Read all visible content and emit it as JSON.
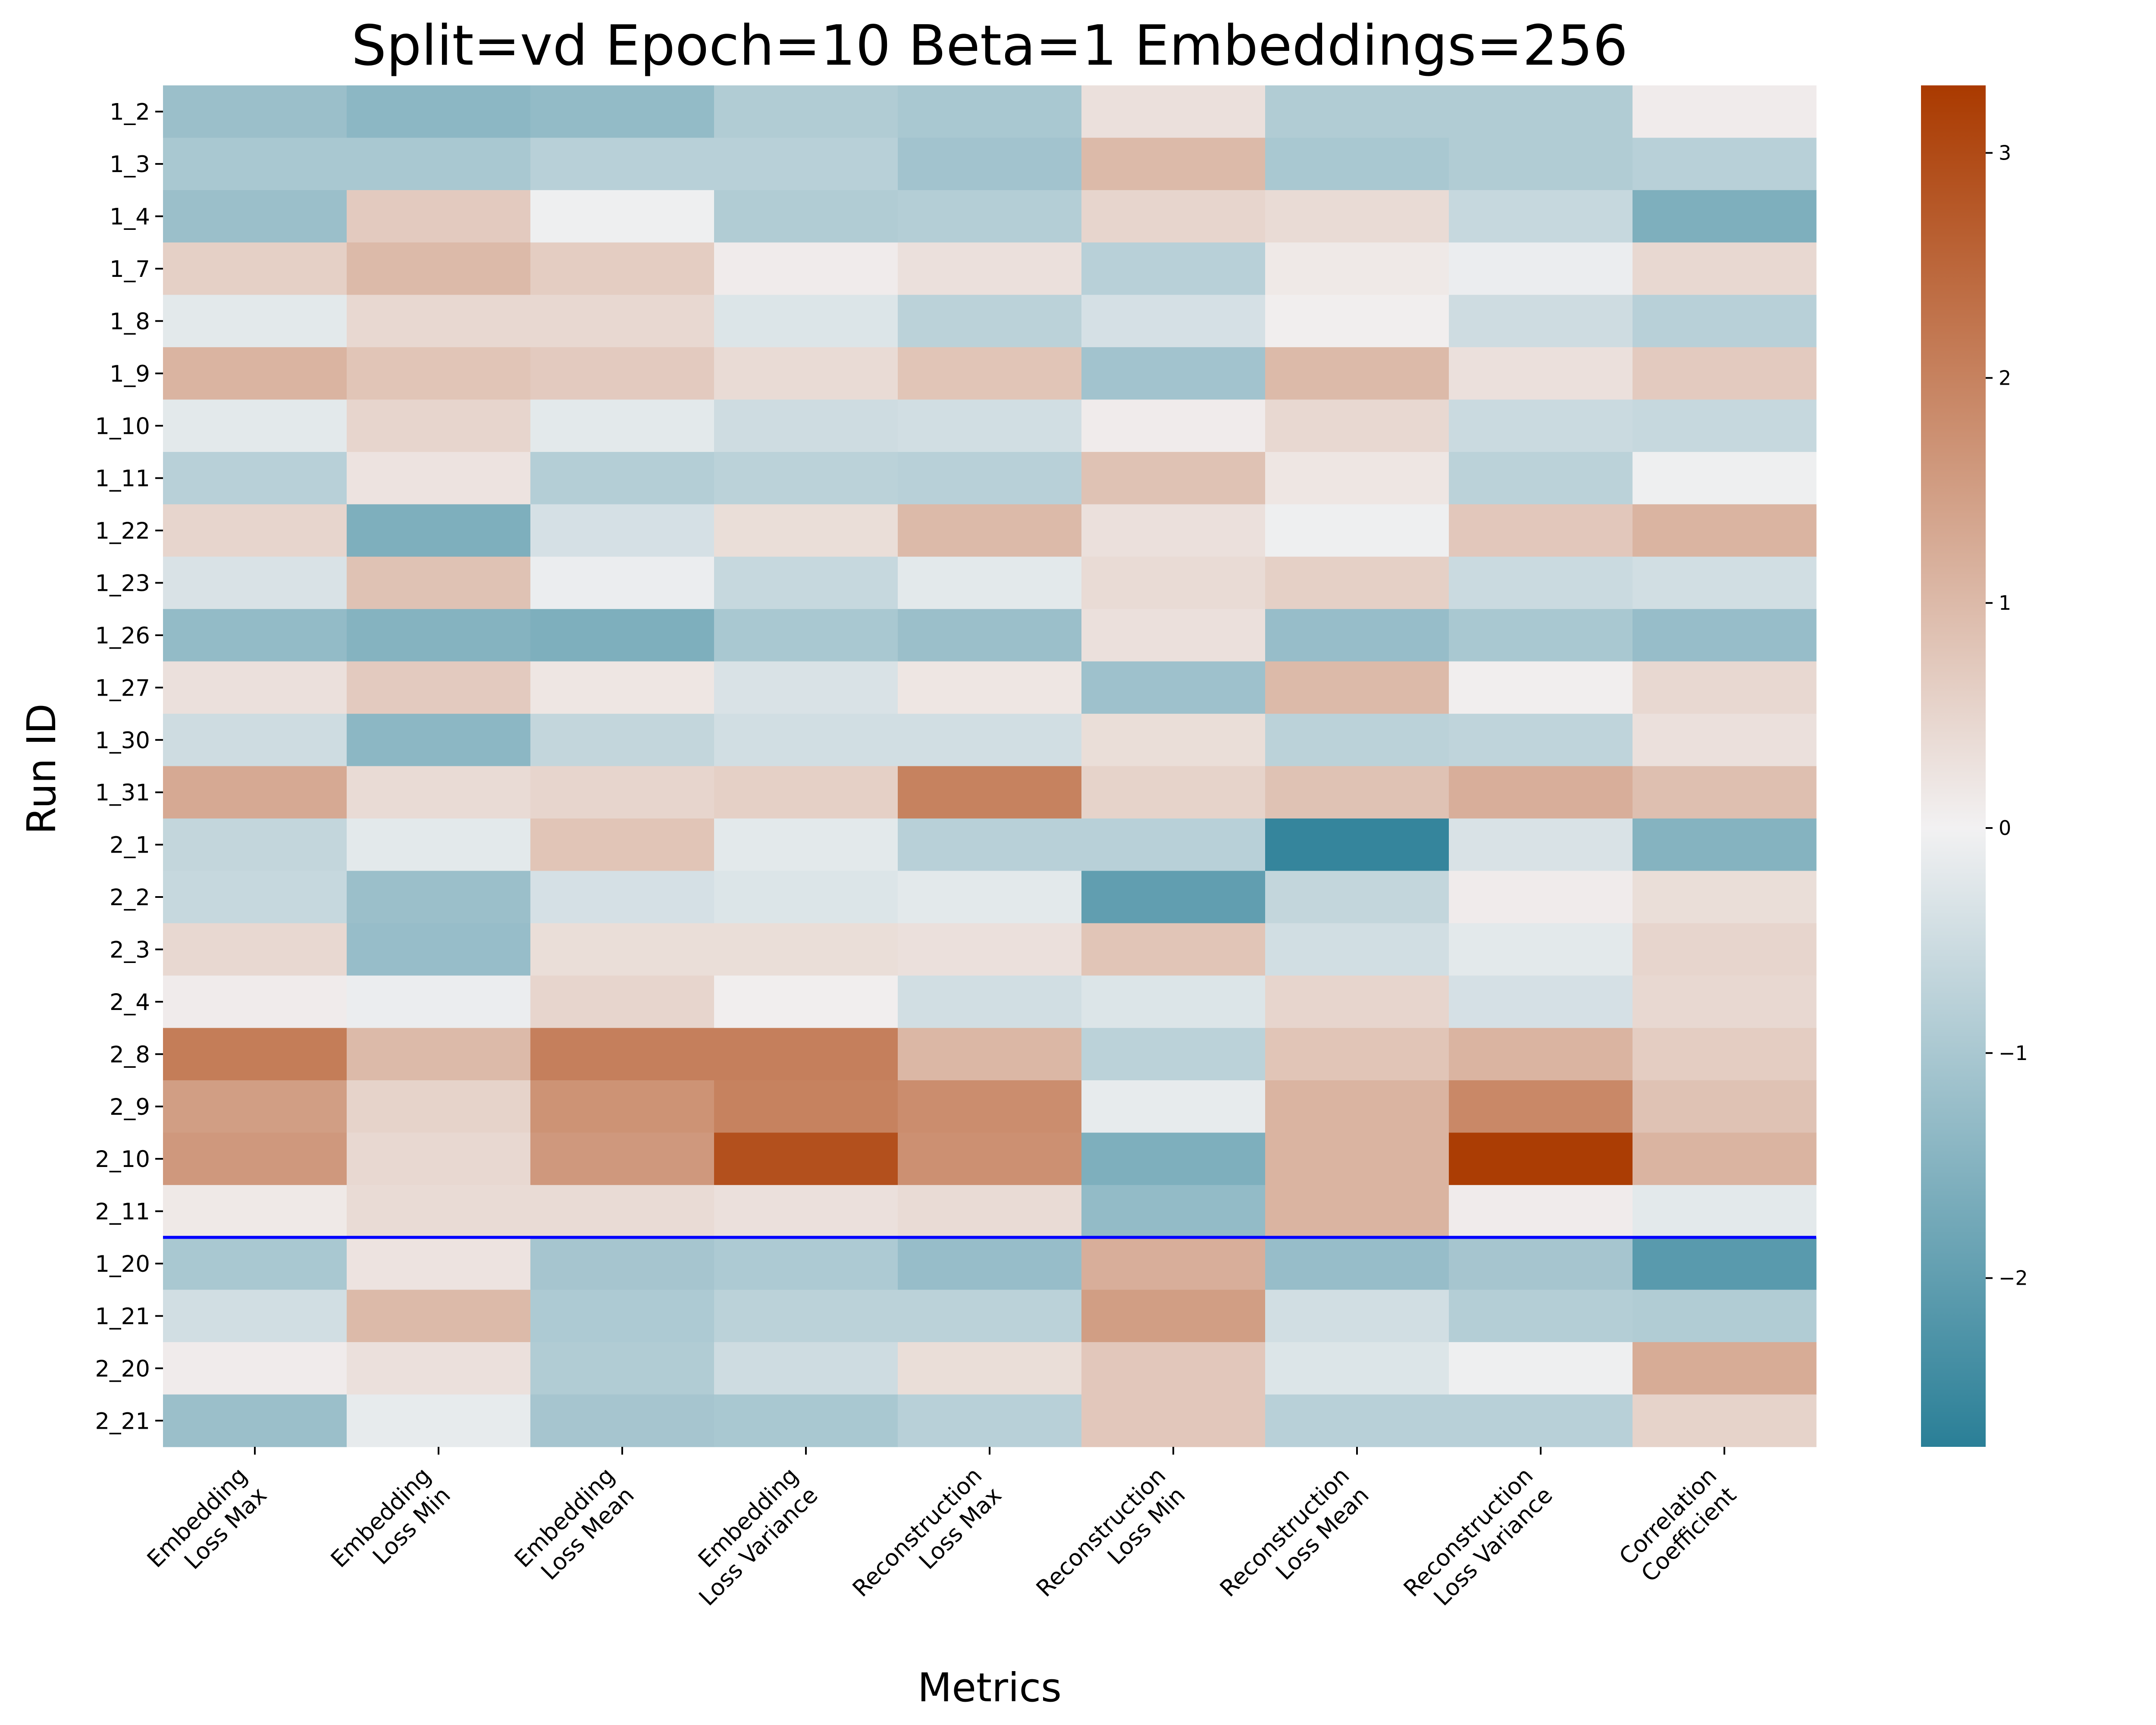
{
  "chart_data": {
    "type": "heatmap",
    "title": "Split=vd Epoch=10 Beta=1 Embeddings=256",
    "xlabel": "Metrics",
    "ylabel": "Run ID",
    "rows": [
      "1_2",
      "1_3",
      "1_4",
      "1_7",
      "1_8",
      "1_9",
      "1_10",
      "1_11",
      "1_22",
      "1_23",
      "1_26",
      "1_27",
      "1_30",
      "1_31",
      "2_1",
      "2_2",
      "2_3",
      "2_4",
      "2_8",
      "2_9",
      "2_10",
      "2_11",
      "1_20",
      "1_21",
      "2_20",
      "2_21"
    ],
    "columns": [
      [
        "Embedding",
        "Loss Max"
      ],
      [
        "Embedding",
        "Loss Min"
      ],
      [
        "Embedding",
        "Loss Mean"
      ],
      [
        "Embedding",
        "Loss Variance"
      ],
      [
        "Reconstruction",
        "Loss Max"
      ],
      [
        "Reconstruction",
        "Loss Min"
      ],
      [
        "Reconstruction",
        "Loss Mean"
      ],
      [
        "Reconstruction",
        "Loss Variance"
      ],
      [
        "Correlation",
        "Coefficient"
      ]
    ],
    "values": [
      [
        -1.2,
        -1.4,
        -1.3,
        -0.9,
        -1.0,
        0.3,
        -0.9,
        -0.9,
        0.1
      ],
      [
        -1.0,
        -1.0,
        -0.8,
        -0.8,
        -1.1,
        1.0,
        -1.0,
        -0.9,
        -0.8
      ],
      [
        -1.2,
        0.7,
        -0.05,
        -0.9,
        -0.85,
        0.5,
        0.4,
        -0.6,
        -1.6
      ],
      [
        0.6,
        1.0,
        0.65,
        0.1,
        0.3,
        -0.8,
        0.15,
        -0.1,
        0.45
      ],
      [
        -0.2,
        0.45,
        0.45,
        -0.3,
        -0.75,
        -0.4,
        0.05,
        -0.5,
        -0.8
      ],
      [
        1.1,
        0.8,
        0.7,
        0.4,
        0.8,
        -1.1,
        1.0,
        0.3,
        0.7
      ],
      [
        -0.2,
        0.5,
        -0.2,
        -0.5,
        -0.45,
        0.1,
        0.45,
        -0.55,
        -0.6
      ],
      [
        -0.8,
        0.25,
        -0.85,
        -0.75,
        -0.8,
        0.85,
        0.2,
        -0.75,
        -0.05
      ],
      [
        0.5,
        -1.6,
        -0.4,
        0.35,
        1.0,
        0.3,
        -0.05,
        0.75,
        1.1
      ],
      [
        -0.35,
        0.85,
        -0.1,
        -0.6,
        -0.2,
        0.4,
        0.6,
        -0.55,
        -0.45
      ],
      [
        -1.3,
        -1.5,
        -1.6,
        -1.0,
        -1.2,
        0.3,
        -1.25,
        -1.0,
        -1.25
      ],
      [
        0.3,
        0.7,
        0.2,
        -0.35,
        0.2,
        -1.15,
        1.0,
        0.05,
        0.45
      ],
      [
        -0.5,
        -1.4,
        -0.65,
        -0.45,
        -0.45,
        0.35,
        -0.75,
        -0.7,
        0.3
      ],
      [
        1.3,
        0.4,
        0.5,
        0.6,
        2.0,
        0.55,
        0.85,
        1.2,
        0.9
      ],
      [
        -0.65,
        -0.2,
        0.8,
        -0.2,
        -0.8,
        -0.8,
        -2.6,
        -0.35,
        -1.5
      ],
      [
        -0.6,
        -1.2,
        -0.4,
        -0.3,
        -0.2,
        -2.0,
        -0.65,
        0.1,
        0.35
      ],
      [
        0.45,
        -1.25,
        0.35,
        0.35,
        0.3,
        0.8,
        -0.45,
        -0.2,
        0.5
      ],
      [
        0.1,
        -0.1,
        0.5,
        0.05,
        -0.45,
        -0.3,
        0.5,
        -0.4,
        0.45
      ],
      [
        2.1,
        1.0,
        2.05,
        2.05,
        1.05,
        -0.75,
        0.8,
        1.1,
        0.65
      ],
      [
        1.5,
        0.55,
        1.7,
        2.0,
        1.8,
        -0.15,
        1.1,
        1.9,
        0.85
      ],
      [
        1.6,
        0.45,
        1.6,
        2.9,
        1.75,
        -1.6,
        1.1,
        3.25,
        1.1
      ],
      [
        0.15,
        0.4,
        0.4,
        0.3,
        0.4,
        -1.3,
        1.1,
        0.1,
        -0.2
      ],
      [
        -1.0,
        0.25,
        -1.05,
        -0.95,
        -1.25,
        1.2,
        -1.25,
        -1.05,
        -2.1
      ],
      [
        -0.45,
        1.0,
        -0.95,
        -0.75,
        -0.75,
        1.5,
        -0.45,
        -0.85,
        -0.9
      ],
      [
        0.1,
        0.3,
        -0.9,
        -0.5,
        0.35,
        0.75,
        -0.3,
        -0.05,
        1.25
      ],
      [
        -1.2,
        -0.15,
        -1.05,
        -1.0,
        -0.8,
        0.75,
        -0.8,
        -0.8,
        0.55
      ]
    ],
    "vmin": -2.75,
    "vmax": 3.3,
    "colormap": {
      "low": "#2a7f97",
      "mid": "#f2f1f2",
      "high": "#aa3a00"
    },
    "colorbar_ticks": [
      -2,
      -1,
      0,
      1,
      2,
      3
    ],
    "colorbar_tick_labels": [
      "−2",
      "−1",
      "0",
      "1",
      "2",
      "3"
    ],
    "separator_after_row": "2_11",
    "separator_color": "#0000ff",
    "grid": false
  }
}
